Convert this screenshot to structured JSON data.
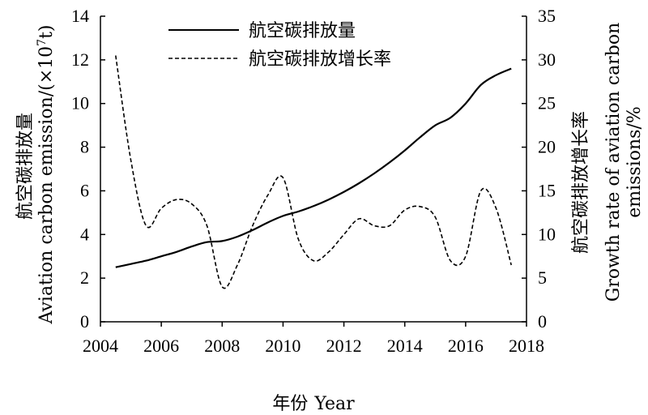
{
  "chart_data": {
    "type": "line",
    "x_axis": {
      "label_cn": "年份",
      "label_en": "Year",
      "range": [
        2004,
        2018
      ],
      "ticks": [
        "2004",
        "2006",
        "2008",
        "2010",
        "2012",
        "2014",
        "2016",
        "2018"
      ]
    },
    "y_left": {
      "label_cn": "航空碳排放量",
      "label_en": "Aviation carbon emission/(×10",
      "label_sup": "7",
      "label_tail": "t)",
      "range": [
        0,
        14
      ],
      "ticks": [
        "0",
        "2",
        "4",
        "6",
        "8",
        "10",
        "12",
        "14"
      ]
    },
    "y_right": {
      "label_cn": "航空碳排放增长率",
      "label_en_line1": "Growth rate of aviation carbon",
      "label_en_line2": "emissions/%",
      "range": [
        0,
        35
      ],
      "ticks": [
        "0",
        "5",
        "10",
        "15",
        "20",
        "25",
        "30",
        "35"
      ]
    },
    "legend_position": "top-center",
    "series": [
      {
        "name": "航空碳排放量",
        "axis": "left",
        "style": "solid",
        "color": "#000000",
        "x": [
          2004.5,
          2005,
          2005.5,
          2006,
          2006.5,
          2007,
          2007.5,
          2008,
          2008.5,
          2009,
          2009.5,
          2010,
          2010.5,
          2011,
          2011.5,
          2012,
          2012.5,
          2013,
          2013.5,
          2014,
          2014.5,
          2015,
          2015.5,
          2016,
          2016.5,
          2017,
          2017.5
        ],
        "y": [
          2.5,
          2.65,
          2.8,
          3.0,
          3.2,
          3.45,
          3.65,
          3.7,
          3.9,
          4.2,
          4.55,
          4.85,
          5.05,
          5.3,
          5.6,
          5.95,
          6.35,
          6.8,
          7.3,
          7.85,
          8.45,
          9.0,
          9.35,
          10.0,
          10.85,
          11.3,
          11.6
        ]
      },
      {
        "name": "航空碳排放增长率",
        "axis": "right",
        "style": "dashed",
        "color": "#000000",
        "x": [
          2004.5,
          2005,
          2005.5,
          2006,
          2006.5,
          2007,
          2007.5,
          2008,
          2008.5,
          2009,
          2009.5,
          2010,
          2010.5,
          2011,
          2011.5,
          2012,
          2012.5,
          2013,
          2013.5,
          2014,
          2014.5,
          2015,
          2015.5,
          2016,
          2016.5,
          2017,
          2017.5
        ],
        "y": [
          30.5,
          18.5,
          11.0,
          13.0,
          14.0,
          13.5,
          11.0,
          4.0,
          6.5,
          11.0,
          14.5,
          16.5,
          9.5,
          7.0,
          8.0,
          10.0,
          11.8,
          11.0,
          11.0,
          12.8,
          13.2,
          12.0,
          7.0,
          7.5,
          15.0,
          13.0,
          6.5
        ]
      }
    ]
  }
}
